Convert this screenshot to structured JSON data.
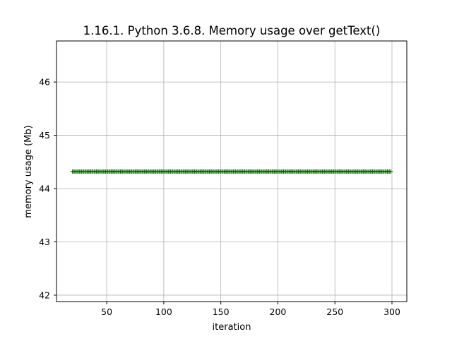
{
  "chart_data": {
    "type": "line",
    "title": "1.16.1. Python 3.6.8. Memory usage over getText()",
    "xlabel": "iteration",
    "ylabel": "memory usage (Mb)",
    "xlim": [
      6.0,
      313.0
    ],
    "ylim": [
      41.88,
      46.77
    ],
    "xticks": [
      50,
      100,
      150,
      200,
      250,
      300
    ],
    "yticks": [
      42,
      43,
      44,
      45,
      46
    ],
    "grid": true,
    "x_start": 20,
    "x_end": 299,
    "value": 44.32,
    "line_color": "#ff0000",
    "marker": "+",
    "marker_color": "#006400"
  }
}
